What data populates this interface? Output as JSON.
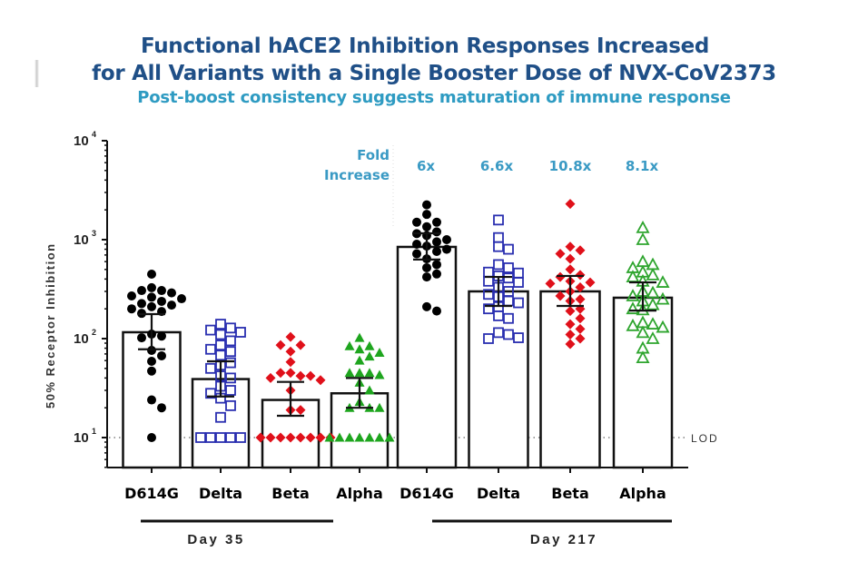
{
  "header": {
    "title_line1": "Functional hACE2 Inhibition Responses Increased",
    "title_line2": "for All Variants with a Single Booster Dose of NVX-CoV2373",
    "subtitle": "Post-boost consistency suggests maturation of immune response"
  },
  "chart_data": {
    "type": "bar",
    "title": "Functional hACE2 Inhibition Responses Increased for All Variants with a Single Booster Dose of NVX-CoV2373",
    "subtitle": "Post-boost consistency suggests maturation of immune response",
    "ylabel": "50% Receptor Inhibition",
    "xlabel": "",
    "yscale": "log",
    "ylim": [
      5,
      10000
    ],
    "yticks": [
      {
        "base": "10",
        "exp": "1",
        "value": 10
      },
      {
        "base": "10",
        "exp": "2",
        "value": 100
      },
      {
        "base": "10",
        "exp": "3",
        "value": 1000
      },
      {
        "base": "10",
        "exp": "4",
        "value": 10000
      }
    ],
    "lod": {
      "label": "LOD",
      "value": 10
    },
    "fold_increase_title": [
      "Fold",
      "Increase"
    ],
    "groups": [
      {
        "label": "Day 35",
        "categories": [
          "D614G",
          "Delta",
          "Beta",
          "Alpha"
        ]
      },
      {
        "label": "Day 217",
        "categories": [
          "D614G",
          "Delta",
          "Beta",
          "Alpha"
        ]
      }
    ],
    "categories": [
      "D614G",
      "Delta",
      "Beta",
      "Alpha",
      "D614G",
      "Delta",
      "Beta",
      "Alpha"
    ],
    "series": [
      {
        "name": "D614G",
        "group": "Day 35",
        "marker": "filled-circle",
        "color": "#000000",
        "bar_value": 116,
        "err_low": 78,
        "err_high": 177,
        "fold_increase": null,
        "points": [
          448,
          327,
          306,
          306,
          290,
          270,
          262,
          253,
          238,
          226,
          218,
          210,
          200,
          188,
          180,
          111,
          106,
          102,
          76,
          67,
          59,
          47,
          24,
          20,
          10
        ]
      },
      {
        "name": "Delta",
        "group": "Day 35",
        "marker": "open-square",
        "color": "#2a2fb0",
        "bar_value": 39,
        "err_low": 26,
        "err_high": 59,
        "fold_increase": null,
        "points": [
          140,
          128,
          122,
          116,
          110,
          95,
          86,
          78,
          74,
          68,
          57,
          54,
          50,
          42,
          40,
          33,
          30,
          28,
          25,
          21,
          16,
          10,
          10,
          10,
          10,
          10
        ]
      },
      {
        "name": "Beta",
        "group": "Day 35",
        "marker": "filled-diamond",
        "color": "#e0101a",
        "bar_value": 24,
        "err_low": 16.6,
        "err_high": 36.5,
        "fold_increase": null,
        "points": [
          104,
          86,
          86,
          74,
          58,
          45,
          42,
          45,
          42,
          40,
          38,
          30,
          19,
          19,
          10,
          10,
          10,
          10,
          10,
          10,
          10,
          10
        ]
      },
      {
        "name": "Alpha",
        "group": "Day 35",
        "marker": "filled-triangle",
        "color": "#1ea51e",
        "bar_value": 28,
        "err_low": 20,
        "err_high": 40,
        "fold_increase": null,
        "points": [
          102,
          84,
          84,
          78,
          72,
          66,
          60,
          45,
          45,
          45,
          43,
          36,
          30,
          23,
          20,
          20,
          20,
          10,
          10,
          10,
          10,
          10,
          10,
          10
        ]
      },
      {
        "name": "D614G",
        "group": "Day 217",
        "marker": "filled-circle",
        "color": "#000000",
        "bar_value": 845,
        "err_low": 630,
        "err_high": 1160,
        "fold_increase": "6x",
        "points": [
          2250,
          1800,
          1500,
          1500,
          1350,
          1200,
          1150,
          1100,
          1000,
          950,
          900,
          860,
          800,
          760,
          720,
          640,
          560,
          520,
          450,
          420,
          210,
          190
        ]
      },
      {
        "name": "Delta",
        "group": "Day 217",
        "marker": "open-square",
        "color": "#2a2fb0",
        "bar_value": 300,
        "err_low": 214,
        "err_high": 420,
        "fold_increase": "6.6x",
        "points": [
          1580,
          1050,
          850,
          800,
          560,
          520,
          470,
          460,
          430,
          410,
          380,
          370,
          330,
          300,
          280,
          265,
          240,
          230,
          210,
          200,
          170,
          160,
          115,
          110,
          100,
          102
        ]
      },
      {
        "name": "Beta",
        "group": "Day 217",
        "marker": "filled-diamond",
        "color": "#e0101a",
        "bar_value": 300,
        "err_low": 214,
        "err_high": 430,
        "fold_increase": "10.8x",
        "points": [
          2300,
          850,
          780,
          720,
          640,
          500,
          440,
          420,
          380,
          370,
          360,
          330,
          300,
          270,
          250,
          240,
          200,
          190,
          160,
          140,
          125,
          110,
          100,
          88
        ]
      },
      {
        "name": "Alpha",
        "group": "Day 217",
        "marker": "open-triangle",
        "color": "#2ea52e",
        "bar_value": 259,
        "err_low": 192,
        "err_high": 370,
        "fold_increase": "8.1x",
        "points": [
          1320,
          1000,
          600,
          560,
          520,
          470,
          440,
          420,
          380,
          370,
          300,
          290,
          270,
          250,
          240,
          220,
          200,
          195,
          145,
          140,
          135,
          130,
          115,
          100,
          80,
          64
        ]
      }
    ]
  }
}
